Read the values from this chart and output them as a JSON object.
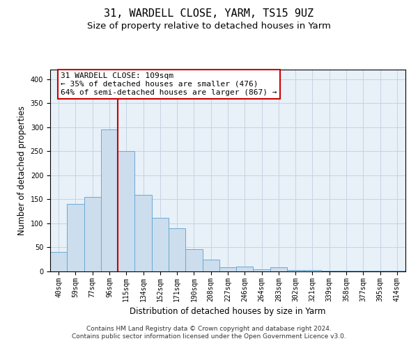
{
  "title": "31, WARDELL CLOSE, YARM, TS15 9UZ",
  "subtitle": "Size of property relative to detached houses in Yarm",
  "xlabel": "Distribution of detached houses by size in Yarm",
  "ylabel": "Number of detached properties",
  "categories": [
    "40sqm",
    "59sqm",
    "77sqm",
    "96sqm",
    "115sqm",
    "134sqm",
    "152sqm",
    "171sqm",
    "190sqm",
    "208sqm",
    "227sqm",
    "246sqm",
    "264sqm",
    "283sqm",
    "302sqm",
    "321sqm",
    "339sqm",
    "358sqm",
    "377sqm",
    "395sqm",
    "414sqm"
  ],
  "values": [
    40,
    140,
    155,
    295,
    250,
    160,
    112,
    90,
    46,
    24,
    9,
    10,
    4,
    8,
    3,
    3,
    2,
    2,
    1,
    2,
    1
  ],
  "bar_color": "#ccdded",
  "bar_edge_color": "#6aaad4",
  "vline_x": 3.5,
  "vline_color": "#cc0000",
  "annotation_line1": "31 WARDELL CLOSE: 109sqm",
  "annotation_line2": "← 35% of detached houses are smaller (476)",
  "annotation_line3": "64% of semi-detached houses are larger (867) →",
  "annotation_box_color": "#ffffff",
  "annotation_box_edge_color": "#cc0000",
  "ylim": [
    0,
    420
  ],
  "yticks": [
    0,
    50,
    100,
    150,
    200,
    250,
    300,
    350,
    400
  ],
  "footer_line1": "Contains HM Land Registry data © Crown copyright and database right 2024.",
  "footer_line2": "Contains public sector information licensed under the Open Government Licence v3.0.",
  "background_color": "#ffffff",
  "plot_bg_color": "#e8f0f8",
  "grid_color": "#c0cfe0",
  "title_fontsize": 11,
  "subtitle_fontsize": 9.5,
  "axis_label_fontsize": 8.5,
  "tick_fontsize": 7,
  "annotation_fontsize": 8,
  "footer_fontsize": 6.5
}
